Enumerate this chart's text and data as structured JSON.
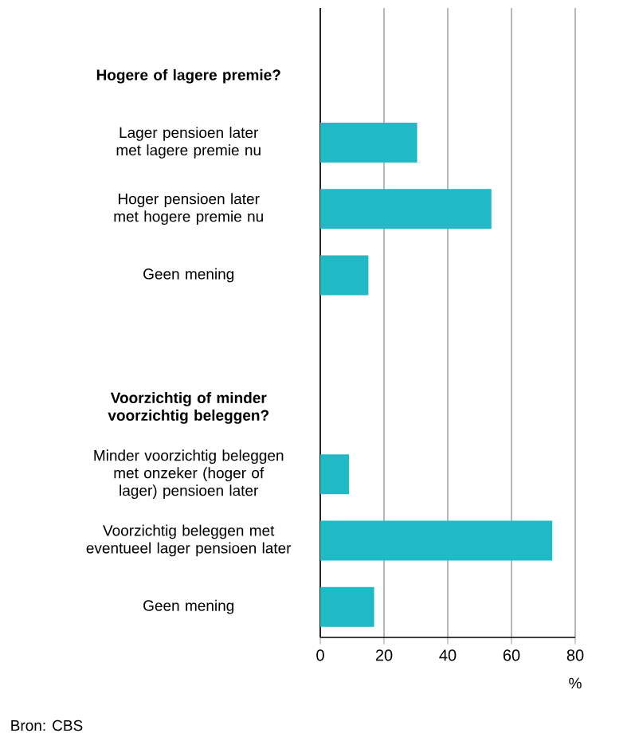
{
  "chart_data": {
    "type": "bar",
    "orientation": "horizontal",
    "categories": [
      "Hogere of lagere premie?",
      "Lager pensioen later met lagere premie nu",
      "Hoger pensioen later met hogere premie nu",
      "Geen mening",
      null,
      "Voorzichtig of minder voorzichtig beleggen?",
      "Minder voorzichtig beleggen met onzeker (hoger of lager) pensioen later",
      "Voorzichtig beleggen met eventueel lager pensioen later",
      "Geen mening"
    ],
    "values": [
      null,
      30.4,
      53.7,
      15.1,
      null,
      null,
      9.0,
      72.8,
      16.9
    ],
    "color": "#1fbac6",
    "xlim": [
      0,
      80
    ],
    "xticks": [
      0,
      20,
      40,
      60,
      80
    ],
    "grid": "x",
    "xlabel": "%",
    "annotations": [
      "Bron: CBS"
    ]
  }
}
